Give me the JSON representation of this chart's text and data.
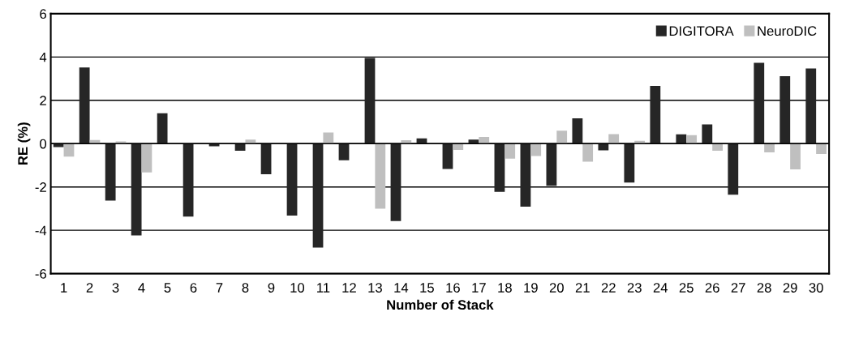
{
  "chart_data": {
    "type": "bar",
    "xlabel": "Number of Stack",
    "ylabel": "RE (%)",
    "categories": [
      "1",
      "2",
      "3",
      "4",
      "5",
      "6",
      "7",
      "8",
      "9",
      "10",
      "11",
      "12",
      "13",
      "14",
      "15",
      "16",
      "17",
      "18",
      "19",
      "20",
      "21",
      "22",
      "23",
      "24",
      "25",
      "26",
      "27",
      "28",
      "29",
      "30"
    ],
    "series": [
      {
        "name": "DIGITORA",
        "color": "#262626",
        "values": [
          -0.16,
          3.52,
          -2.63,
          -4.24,
          1.4,
          -3.37,
          -0.12,
          -0.33,
          -1.41,
          -3.32,
          -4.8,
          -0.77,
          3.96,
          -3.57,
          0.24,
          -1.17,
          0.19,
          -2.23,
          -2.91,
          -1.95,
          1.17,
          -0.31,
          -1.8,
          2.67,
          0.43,
          0.89,
          -2.36,
          3.73,
          3.11,
          3.47
        ]
      },
      {
        "name": "NeuroDIC",
        "color": "#bfbfbf",
        "values": [
          -0.6,
          0.17,
          0.1,
          -1.33,
          null,
          null,
          null,
          0.19,
          null,
          0.0,
          0.51,
          0.0,
          -3.0,
          0.16,
          0.0,
          -0.29,
          0.31,
          -0.69,
          -0.57,
          0.6,
          -0.83,
          0.44,
          0.13,
          null,
          0.39,
          -0.33,
          null,
          -0.4,
          -1.19,
          -0.48
        ]
      }
    ],
    "ylim": [
      -6,
      6
    ],
    "yticks": [
      -6,
      -4,
      -2,
      0,
      2,
      4,
      6
    ],
    "grid": "y",
    "legend": "top right"
  }
}
